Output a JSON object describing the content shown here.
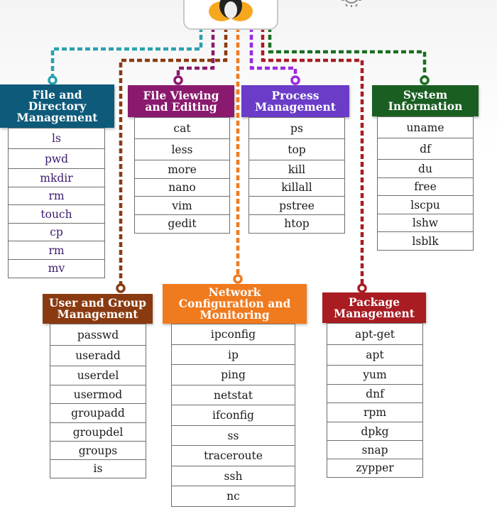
{
  "categories": [
    {
      "title": "File and Directory Management",
      "color": "#0e5a7a",
      "items": [
        "ls",
        "pwd",
        "mkdir",
        "rm",
        "touch",
        "cp",
        "rm",
        "mv"
      ]
    },
    {
      "title": "File Viewing and Editing",
      "color": "#8a1a6e",
      "items": [
        "cat",
        "less",
        "more",
        "nano",
        "vim",
        "gedit"
      ]
    },
    {
      "title": "Process Management",
      "color": "#6a3cc8",
      "items": [
        "ps",
        "top",
        "kill",
        "killall",
        "pstree",
        "htop"
      ]
    },
    {
      "title": "System Information",
      "color": "#1a5e22",
      "items": [
        "uname",
        "df",
        "du",
        "free",
        "lscpu",
        "lshw",
        "lsblk"
      ]
    },
    {
      "title": "User and Group Management",
      "color": "#8a3a10",
      "items": [
        "passwd",
        "useradd",
        "userdel",
        "usermod",
        "groupadd",
        "groupdel",
        "groups",
        "is"
      ]
    },
    {
      "title": "Network Configuration and Monitoring",
      "color": "#f07a1e",
      "items": [
        "ipconfig",
        "ip",
        "ping",
        "netstat",
        "ifconfig",
        "ss",
        "traceroute",
        "ssh",
        "nc"
      ]
    },
    {
      "title": "Package Management",
      "color": "#a81c22",
      "items": [
        "apt-get",
        "apt",
        "yum",
        "dnf",
        "rpm",
        "dpkg",
        "snap",
        "zypper"
      ]
    }
  ],
  "logo": {
    "icon": "linux-tux-icon"
  },
  "gear": {
    "icon": "gear-icon"
  }
}
